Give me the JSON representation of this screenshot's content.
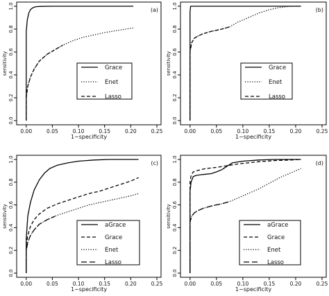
{
  "chart_data": [
    {
      "type": "line",
      "panel_label": "(a)",
      "xlabel": "1−specificity",
      "ylabel": "sensitivity",
      "xlim": [
        -0.005,
        0.25
      ],
      "ylim": [
        0.0,
        1.0
      ],
      "xticks": [
        "0.00",
        "0.05",
        "0.10",
        "0.15",
        "0.20",
        "0.25"
      ],
      "yticks": [
        "0.0",
        "0.2",
        "0.4",
        "0.6",
        "0.8",
        "1.0"
      ],
      "legend_position": "bottom-right",
      "series": [
        {
          "name": "Grace",
          "dash": "solid",
          "x": [
            0.0,
            0.0,
            0.002,
            0.005,
            0.008,
            0.012,
            0.016,
            0.02,
            0.03,
            0.05,
            0.08,
            0.12,
            0.16,
            0.205
          ],
          "y": [
            0.0,
            0.78,
            0.88,
            0.94,
            0.97,
            0.985,
            0.993,
            0.997,
            0.999,
            1.0,
            1.0,
            1.0,
            1.0,
            1.0
          ]
        },
        {
          "name": "Enet",
          "dash": "dotted",
          "x": [
            0.0,
            0.0,
            0.003,
            0.008,
            0.015,
            0.025,
            0.04,
            0.055,
            0.07,
            0.09,
            0.11,
            0.13,
            0.15,
            0.17,
            0.19,
            0.205
          ],
          "y": [
            0.0,
            0.2,
            0.3,
            0.38,
            0.45,
            0.52,
            0.58,
            0.62,
            0.66,
            0.7,
            0.73,
            0.75,
            0.77,
            0.785,
            0.8,
            0.81
          ]
        },
        {
          "name": "Lasso",
          "dash": "dashed",
          "x": [
            0.0,
            0.0,
            0.003,
            0.008,
            0.015,
            0.025,
            0.04,
            0.055,
            0.07
          ],
          "y": [
            0.0,
            0.2,
            0.3,
            0.38,
            0.45,
            0.52,
            0.58,
            0.62,
            0.66
          ]
        }
      ]
    },
    {
      "type": "line",
      "panel_label": "(b)",
      "xlabel": "1−specificity",
      "ylabel": "sensitivity",
      "xlim": [
        -0.005,
        0.25
      ],
      "ylim": [
        0.0,
        1.0
      ],
      "xticks": [
        "0.00",
        "0.05",
        "0.10",
        "0.15",
        "0.20",
        "0.25"
      ],
      "yticks": [
        "0.0",
        "0.2",
        "0.4",
        "0.6",
        "0.8",
        "1.0"
      ],
      "legend_position": "bottom-right",
      "series": [
        {
          "name": "Grace",
          "dash": "solid",
          "x": [
            0.0,
            0.0,
            0.001,
            0.21
          ],
          "y": [
            0.0,
            0.95,
            1.0,
            1.0
          ]
        },
        {
          "name": "Enet",
          "dash": "dotted",
          "x": [
            0.0,
            0.0,
            0.003,
            0.008,
            0.015,
            0.025,
            0.04,
            0.06,
            0.075,
            0.09,
            0.11,
            0.13,
            0.15,
            0.17,
            0.19,
            0.21
          ],
          "y": [
            0.0,
            0.6,
            0.68,
            0.72,
            0.74,
            0.76,
            0.78,
            0.8,
            0.82,
            0.86,
            0.9,
            0.94,
            0.97,
            0.99,
            1.0,
            1.0
          ]
        },
        {
          "name": "Lasso",
          "dash": "dashed",
          "x": [
            0.0,
            0.0,
            0.003,
            0.008,
            0.015,
            0.025,
            0.04,
            0.06,
            0.075
          ],
          "y": [
            0.0,
            0.6,
            0.68,
            0.72,
            0.74,
            0.76,
            0.78,
            0.8,
            0.82
          ]
        }
      ]
    },
    {
      "type": "line",
      "panel_label": "(c)",
      "xlabel": "1−specificity",
      "ylabel": "sensitivity",
      "xlim": [
        -0.005,
        0.25
      ],
      "ylim": [
        0.0,
        1.0
      ],
      "xticks": [
        "0.00",
        "0.05",
        "0.10",
        "0.15",
        "0.20",
        "0.25"
      ],
      "yticks": [
        "0.0",
        "0.2",
        "0.4",
        "0.6",
        "0.8",
        "1.0"
      ],
      "legend_position": "bottom-right",
      "series": [
        {
          "name": "aGrace",
          "dash": "solid",
          "x": [
            0.0,
            0.0,
            0.003,
            0.008,
            0.015,
            0.025,
            0.035,
            0.045,
            0.06,
            0.08,
            0.1,
            0.13,
            0.16,
            0.19,
            0.215
          ],
          "y": [
            0.0,
            0.3,
            0.5,
            0.62,
            0.73,
            0.82,
            0.88,
            0.92,
            0.95,
            0.97,
            0.985,
            0.995,
            1.0,
            1.0,
            1.0
          ]
        },
        {
          "name": "Grace",
          "dash": "dashed",
          "x": [
            0.0,
            0.0,
            0.003,
            0.008,
            0.015,
            0.025,
            0.04,
            0.06,
            0.08,
            0.1,
            0.12,
            0.14,
            0.16,
            0.18,
            0.2,
            0.215
          ],
          "y": [
            0.0,
            0.25,
            0.33,
            0.41,
            0.47,
            0.52,
            0.57,
            0.61,
            0.64,
            0.67,
            0.7,
            0.72,
            0.75,
            0.78,
            0.81,
            0.84
          ]
        },
        {
          "name": "Enet",
          "dash": "dotted",
          "x": [
            0.0,
            0.0,
            0.003,
            0.008,
            0.015,
            0.025,
            0.04,
            0.06,
            0.08,
            0.1,
            0.12,
            0.14,
            0.16,
            0.18,
            0.2,
            0.215
          ],
          "y": [
            0.0,
            0.2,
            0.27,
            0.33,
            0.38,
            0.43,
            0.47,
            0.51,
            0.54,
            0.57,
            0.6,
            0.62,
            0.64,
            0.66,
            0.68,
            0.7
          ]
        },
        {
          "name": "Lasso",
          "dash": "longdash",
          "x": [
            0.0,
            0.0,
            0.003,
            0.008,
            0.015,
            0.025,
            0.04,
            0.055
          ],
          "y": [
            0.0,
            0.2,
            0.27,
            0.33,
            0.38,
            0.43,
            0.47,
            0.5
          ]
        }
      ]
    },
    {
      "type": "line",
      "panel_label": "(d)",
      "xlabel": "1−specificity",
      "ylabel": "sensitivity",
      "xlim": [
        -0.005,
        0.25
      ],
      "ylim": [
        0.0,
        1.0
      ],
      "xticks": [
        "0.00",
        "0.05",
        "0.10",
        "0.15",
        "0.20",
        "0.25"
      ],
      "yticks": [
        "0.0",
        "0.2",
        "0.4",
        "0.6",
        "0.8",
        "1.0"
      ],
      "legend_position": "bottom-right",
      "series": [
        {
          "name": "aGrace",
          "dash": "solid",
          "x": [
            0.0,
            0.0,
            0.002,
            0.006,
            0.012,
            0.02,
            0.03,
            0.04,
            0.05,
            0.06,
            0.07,
            0.08,
            0.1,
            0.13,
            0.16,
            0.19,
            0.21
          ],
          "y": [
            0.0,
            0.72,
            0.8,
            0.85,
            0.86,
            0.865,
            0.87,
            0.875,
            0.89,
            0.91,
            0.94,
            0.97,
            0.985,
            0.995,
            1.0,
            1.0,
            1.0
          ]
        },
        {
          "name": "Grace",
          "dash": "dashed",
          "x": [
            0.0,
            0.0,
            0.002,
            0.006,
            0.012,
            0.02,
            0.03,
            0.05,
            0.07,
            0.09,
            0.11,
            0.13,
            0.16,
            0.19,
            0.21
          ],
          "y": [
            0.0,
            0.8,
            0.86,
            0.89,
            0.9,
            0.91,
            0.92,
            0.93,
            0.945,
            0.96,
            0.97,
            0.98,
            0.99,
            0.995,
            1.0
          ]
        },
        {
          "name": "Enet",
          "dash": "dotted",
          "x": [
            0.0,
            0.0,
            0.003,
            0.008,
            0.015,
            0.025,
            0.04,
            0.06,
            0.075,
            0.09,
            0.11,
            0.13,
            0.15,
            0.17,
            0.19,
            0.21
          ],
          "y": [
            0.0,
            0.45,
            0.5,
            0.53,
            0.55,
            0.57,
            0.59,
            0.61,
            0.63,
            0.66,
            0.7,
            0.74,
            0.79,
            0.84,
            0.88,
            0.92
          ]
        },
        {
          "name": "Lasso",
          "dash": "longdash",
          "x": [
            0.0,
            0.0,
            0.003,
            0.008,
            0.015,
            0.025,
            0.04,
            0.06,
            0.075
          ],
          "y": [
            0.0,
            0.45,
            0.5,
            0.53,
            0.55,
            0.57,
            0.59,
            0.61,
            0.63
          ]
        }
      ]
    }
  ]
}
